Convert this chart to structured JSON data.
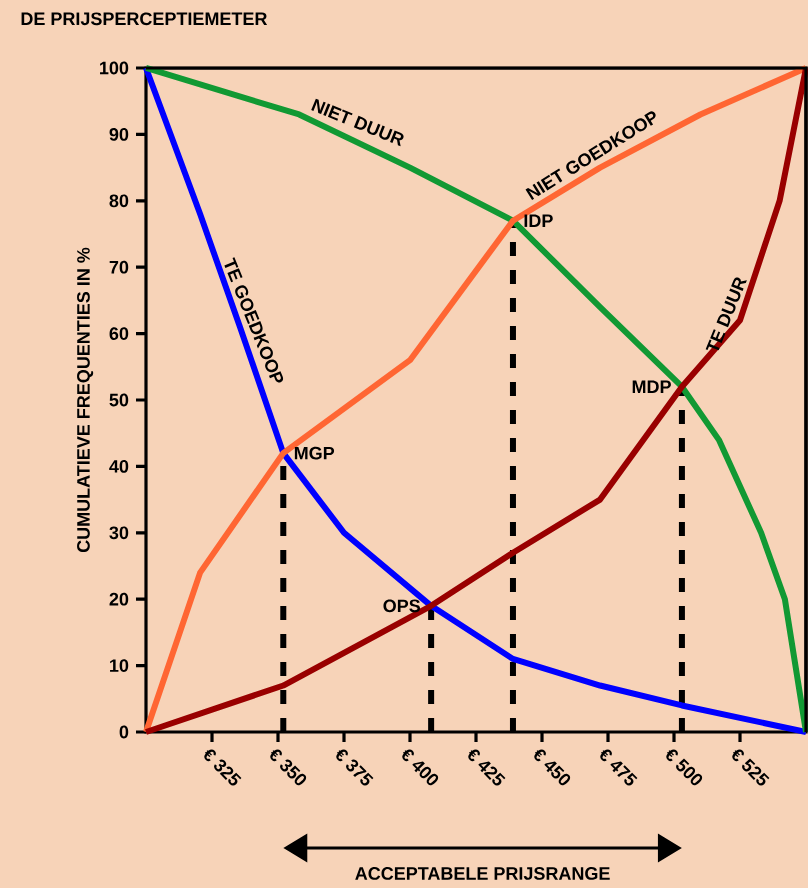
{
  "chart_data": {
    "type": "line",
    "title": "DE PRIJSPERCEPTIEMETER",
    "ylabel": "CUMULATIEVE FREQUENTIES IN  %",
    "xlim": [
      300,
      550
    ],
    "ylim": [
      0,
      100
    ],
    "xticks": [
      {
        "value": 325,
        "label": "€ 325"
      },
      {
        "value": 350,
        "label": "€ 350"
      },
      {
        "value": 375,
        "label": "€ 375"
      },
      {
        "value": 400,
        "label": "€ 400"
      },
      {
        "value": 425,
        "label": "€ 425"
      },
      {
        "value": 450,
        "label": "€ 450"
      },
      {
        "value": 475,
        "label": "€ 475"
      },
      {
        "value": 500,
        "label": "€ 500"
      },
      {
        "value": 525,
        "label": "€ 525"
      }
    ],
    "yticks": [
      0,
      10,
      20,
      30,
      40,
      50,
      60,
      70,
      80,
      90,
      100
    ],
    "marker": "none",
    "line_style": "solid",
    "grid": false,
    "legend": false,
    "series": [
      {
        "name": "TE GOEDKOOP",
        "color": "#0000ff",
        "x": [
          300,
          320.5,
          335.6,
          352,
          375,
          408,
          439,
          472,
          503,
          550
        ],
        "values": [
          100,
          78,
          61,
          42,
          30,
          19,
          11,
          7,
          4,
          0
        ]
      },
      {
        "name": "NIET DUUR",
        "color": "#119933",
        "x": [
          300,
          358,
          400,
          439,
          472,
          503,
          517,
          533,
          542,
          550
        ],
        "values": [
          100,
          93,
          85,
          77,
          64,
          52,
          44,
          30,
          20,
          0
        ]
      },
      {
        "name": "NIET GOEDKOOP",
        "color": "#ff6633",
        "x": [
          300,
          320.5,
          352,
          400,
          439,
          472,
          510,
          550
        ],
        "values": [
          0,
          24,
          42,
          56,
          77,
          85,
          93,
          100
        ]
      },
      {
        "name": "TE DUUR",
        "color": "#990000",
        "x": [
          300,
          352,
          408,
          439,
          472,
          503,
          525,
          540,
          550
        ],
        "values": [
          0,
          7,
          19,
          27,
          35,
          52,
          62,
          80,
          100
        ]
      }
    ],
    "ref_lines": [
      {
        "axis": "x",
        "value": 352,
        "line_style": "dashed"
      },
      {
        "axis": "x",
        "value": 408,
        "line_style": "dashed"
      },
      {
        "axis": "x",
        "value": 439,
        "line_style": "dashed"
      },
      {
        "axis": "x",
        "value": 503,
        "line_style": "dashed"
      }
    ],
    "annotations": [
      {
        "text": "MGP",
        "x": 352,
        "y": 42
      },
      {
        "text": "OPS",
        "x": 408,
        "y": 19
      },
      {
        "text": "IDP",
        "x": 439,
        "y": 77
      },
      {
        "text": "MDP",
        "x": 503,
        "y": 52
      },
      "ACCEPTABELE PRIJSRANGE"
    ]
  }
}
